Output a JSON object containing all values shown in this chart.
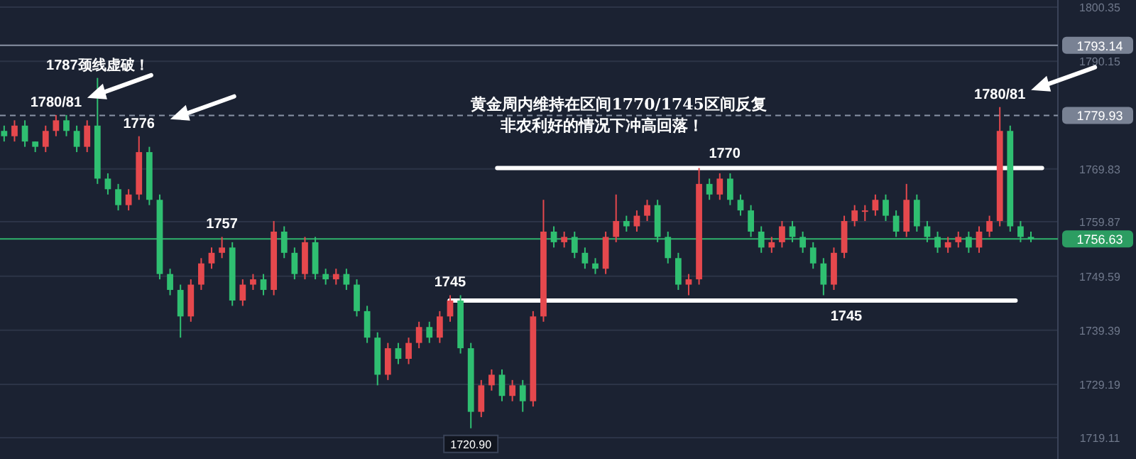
{
  "chart_data": {
    "type": "candlestick",
    "categories": [
      null,
      null,
      null,
      null,
      null,
      null,
      null,
      null,
      null,
      null,
      null,
      null,
      null,
      null,
      null,
      null,
      null,
      null,
      null,
      null,
      null,
      null,
      null,
      null,
      null,
      null,
      null,
      null,
      null,
      null,
      null,
      null,
      null,
      null,
      null,
      null,
      null,
      null,
      null,
      null,
      null,
      null,
      null,
      null,
      null,
      null,
      null,
      null,
      null,
      null,
      null,
      null,
      null,
      null,
      null,
      null,
      null,
      null,
      null,
      null,
      null,
      null,
      null,
      null,
      null,
      null,
      null,
      null,
      null,
      null,
      null,
      null,
      null,
      null,
      null,
      null,
      null,
      null,
      null,
      null,
      null,
      null,
      null,
      null,
      null,
      null,
      null,
      null,
      null,
      null,
      null,
      null,
      null,
      null,
      null,
      null,
      null,
      null,
      null,
      null
    ],
    "ohlc": [
      [
        1777,
        1778,
        1775,
        1776
      ],
      [
        1776,
        1779,
        1775,
        1778
      ],
      [
        1778,
        1779,
        1774,
        1775
      ],
      [
        1775,
        1775,
        1773,
        1774
      ],
      [
        1774,
        1778,
        1773,
        1777
      ],
      [
        1777,
        1780,
        1776,
        1779
      ],
      [
        1779,
        1780,
        1776,
        1777
      ],
      [
        1777,
        1778,
        1773,
        1774
      ],
      [
        1774,
        1779,
        1773,
        1778
      ],
      [
        1778,
        1787,
        1767,
        1768
      ],
      [
        1768,
        1769,
        1765,
        1766
      ],
      [
        1766,
        1767,
        1762,
        1763
      ],
      [
        1763,
        1766,
        1762,
        1765
      ],
      [
        1765,
        1776,
        1764,
        1773
      ],
      [
        1773,
        1774,
        1763,
        1764
      ],
      [
        1764,
        1765,
        1749,
        1750
      ],
      [
        1750,
        1751,
        1746,
        1747
      ],
      [
        1747,
        1748,
        1738,
        1742
      ],
      [
        1742,
        1749,
        1741,
        1748
      ],
      [
        1748,
        1753,
        1747,
        1752
      ],
      [
        1752,
        1755,
        1751,
        1754
      ],
      [
        1754,
        1757,
        1753,
        1755
      ],
      [
        1755,
        1756,
        1744,
        1745
      ],
      [
        1745,
        1749,
        1744,
        1748
      ],
      [
        1748,
        1750,
        1747,
        1749
      ],
      [
        1749,
        1750,
        1746,
        1747
      ],
      [
        1747,
        1760,
        1746,
        1758
      ],
      [
        1758,
        1759,
        1753,
        1754
      ],
      [
        1754,
        1755,
        1749,
        1750
      ],
      [
        1750,
        1757,
        1749,
        1756
      ],
      [
        1756,
        1757,
        1749,
        1750
      ],
      [
        1750,
        1751,
        1748,
        1749
      ],
      [
        1749,
        1751,
        1748,
        1750
      ],
      [
        1750,
        1751,
        1747,
        1748
      ],
      [
        1748,
        1749,
        1742,
        1743
      ],
      [
        1743,
        1744,
        1737,
        1738
      ],
      [
        1738,
        1739,
        1729,
        1731
      ],
      [
        1731,
        1737,
        1730,
        1736
      ],
      [
        1736,
        1737,
        1733,
        1734
      ],
      [
        1734,
        1738,
        1733,
        1737
      ],
      [
        1737,
        1741,
        1736,
        1740
      ],
      [
        1740,
        1741,
        1737,
        1738
      ],
      [
        1738,
        1743,
        1737,
        1742
      ],
      [
        1742,
        1746,
        1741,
        1745
      ],
      [
        1745,
        1746,
        1735,
        1736
      ],
      [
        1736,
        1737,
        1720.9,
        1724
      ],
      [
        1724,
        1730,
        1723,
        1729
      ],
      [
        1729,
        1732,
        1728,
        1731
      ],
      [
        1731,
        1732,
        1726,
        1727
      ],
      [
        1727,
        1730,
        1726,
        1729
      ],
      [
        1729,
        1730,
        1724,
        1726
      ],
      [
        1726,
        1743,
        1725,
        1742
      ],
      [
        1742,
        1764,
        1741,
        1758
      ],
      [
        1758,
        1759,
        1755,
        1756
      ],
      [
        1756,
        1758,
        1755,
        1757
      ],
      [
        1757,
        1758,
        1753,
        1754
      ],
      [
        1754,
        1755,
        1751,
        1752
      ],
      [
        1752,
        1753,
        1750,
        1751
      ],
      [
        1751,
        1758,
        1750,
        1757
      ],
      [
        1757,
        1765,
        1756,
        1760
      ],
      [
        1760,
        1761,
        1758,
        1759
      ],
      [
        1759,
        1762,
        1758,
        1761
      ],
      [
        1761,
        1764,
        1760,
        1763
      ],
      [
        1763,
        1764,
        1756,
        1757
      ],
      [
        1757,
        1758,
        1752,
        1753
      ],
      [
        1753,
        1754,
        1747,
        1748
      ],
      [
        1748,
        1750,
        1746,
        1749
      ],
      [
        1749,
        1770,
        1748,
        1767
      ],
      [
        1767,
        1768,
        1764,
        1765
      ],
      [
        1765,
        1769,
        1764,
        1768
      ],
      [
        1768,
        1769,
        1763,
        1764
      ],
      [
        1764,
        1765,
        1761,
        1762
      ],
      [
        1762,
        1763,
        1757,
        1758
      ],
      [
        1758,
        1759,
        1754,
        1755
      ],
      [
        1755,
        1757,
        1754,
        1756
      ],
      [
        1756,
        1760,
        1755,
        1759
      ],
      [
        1759,
        1760,
        1756,
        1757
      ],
      [
        1757,
        1758,
        1754,
        1755
      ],
      [
        1755,
        1756,
        1751,
        1752
      ],
      [
        1752,
        1753,
        1746,
        1748
      ],
      [
        1748,
        1755,
        1747,
        1754
      ],
      [
        1754,
        1761,
        1753,
        1760
      ],
      [
        1760,
        1763,
        1759,
        1762
      ],
      [
        1762,
        1763,
        1760,
        1762
      ],
      [
        1762,
        1765,
        1761,
        1764
      ],
      [
        1764,
        1765,
        1760,
        1761
      ],
      [
        1761,
        1762,
        1757,
        1758
      ],
      [
        1758,
        1767,
        1757,
        1764
      ],
      [
        1764,
        1765,
        1758,
        1759
      ],
      [
        1759,
        1760,
        1756,
        1757
      ],
      [
        1757,
        1758,
        1754,
        1755
      ],
      [
        1755,
        1757,
        1754,
        1756
      ],
      [
        1756,
        1758,
        1755,
        1757
      ],
      [
        1757,
        1758,
        1754,
        1755
      ],
      [
        1755,
        1759,
        1754,
        1758
      ],
      [
        1758,
        1761,
        1757,
        1760
      ],
      [
        1760,
        1781.5,
        1759,
        1777
      ],
      [
        1777,
        1778,
        1758,
        1759
      ],
      [
        1759,
        1760,
        1756,
        1757
      ],
      [
        1757,
        1758,
        1756,
        1756.6
      ]
    ],
    "ylim": [
      1715.1,
      1801.7
    ],
    "yticks": [
      1800.35,
      1790.15,
      1769.83,
      1759.87,
      1749.59,
      1739.39,
      1729.19,
      1719.11
    ],
    "tick_labels": "y",
    "grid": "y",
    "ref_lines": [
      {
        "axis": "y",
        "value": 1793.14,
        "label": "1793.14",
        "color": "#8a93a6",
        "line_style": "solid"
      },
      {
        "axis": "y",
        "value": 1779.93,
        "label": "1779.93",
        "color": "#8a93a6",
        "line_style": "dashed"
      },
      {
        "axis": "y",
        "value": 1756.63,
        "label": "1756.63",
        "color": "#2fb36b",
        "line_style": "solid"
      },
      {
        "axis": "y",
        "value": 1770,
        "label": "1770",
        "color": "#ffffff",
        "line_style": "solid"
      },
      {
        "axis": "y",
        "value": 1745,
        "label": "1745",
        "color": "#ffffff",
        "line_style": "solid"
      }
    ],
    "annotations": [
      {
        "text": "1787颈线虚破！",
        "y": 1787
      },
      {
        "text": "1780/81",
        "y": 1780
      },
      {
        "text": "1776",
        "y": 1776
      },
      {
        "text": "1757",
        "y": 1757
      },
      {
        "text": "1745",
        "y": 1746
      },
      {
        "text": "1720.90",
        "y": 1720.9
      },
      {
        "text": "1780/81",
        "y": 1781.5
      },
      "黄金周内维持在区间1770/1745区间反复",
      "非农利好的情况下冲高回落！"
    ]
  }
}
